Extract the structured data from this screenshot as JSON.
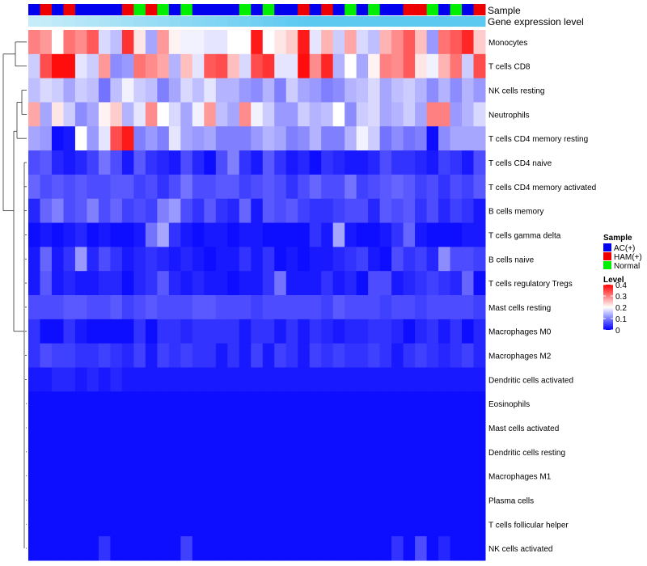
{
  "chart_data": {
    "type": "heatmap",
    "title": "",
    "annotation_tracks": [
      "Sample",
      "Gene expression level"
    ],
    "rows": [
      "Monocytes",
      "T cells CD8",
      "NK cells resting",
      "Neutrophils",
      "T cells CD4 memory resting",
      "T cells CD4 naive",
      "T cells CD4 memory activated",
      "B cells memory",
      "T cells gamma delta",
      "B cells naive",
      "T cells regulatory  Tregs",
      "Mast cells resting",
      "Macrophages M0",
      "Macrophages M2",
      "Dendritic cells activated",
      "Eosinophils",
      "Mast cells activated",
      "Dendritic cells resting",
      "Macrophages M1",
      "Plasma cells",
      "T cells follicular helper",
      "NK cells activated"
    ],
    "sample_groups": [
      "AC(+)",
      "HAM(+)",
      "AC(+)",
      "HAM(+)",
      "AC(+)",
      "AC(+)",
      "AC(+)",
      "AC(+)",
      "HAM(+)",
      "Normal",
      "HAM(+)",
      "Normal",
      "AC(+)",
      "Normal",
      "AC(+)",
      "AC(+)",
      "AC(+)",
      "AC(+)",
      "Normal",
      "AC(+)",
      "Normal",
      "AC(+)",
      "AC(+)",
      "HAM(+)",
      "AC(+)",
      "HAM(+)",
      "AC(+)",
      "Normal",
      "AC(+)",
      "Normal",
      "AC(+)",
      "AC(+)",
      "HAM(+)",
      "HAM(+)",
      "Normal",
      "AC(+)",
      "Normal",
      "AC(+)",
      "HAM(+)"
    ],
    "gene_expression_level": [
      0.05,
      0.09,
      0.13,
      0.17,
      0.21,
      0.25,
      0.29,
      0.33,
      0.37,
      0.41,
      0.45,
      0.49,
      0.53,
      0.57,
      0.61,
      0.65,
      0.69,
      0.73,
      0.77,
      0.81,
      0.85,
      0.89,
      0.93,
      0.97,
      0.98,
      0.98,
      0.98,
      0.98,
      0.98,
      0.98,
      0.98,
      0.98,
      0.98,
      0.98,
      0.98,
      0.98,
      0.98,
      0.98,
      0.98
    ],
    "values": [
      [
        0.3,
        0.28,
        0.2,
        0.31,
        0.29,
        0.33,
        0.17,
        0.15,
        0.36,
        0.22,
        0.13,
        0.28,
        0.21,
        0.19,
        0.19,
        0.18,
        0.18,
        0.2,
        0.2,
        0.38,
        0.2,
        0.22,
        0.24,
        0.38,
        0.18,
        0.26,
        0.16,
        0.27,
        0.17,
        0.15,
        0.26,
        0.29,
        0.33,
        0.25,
        0.12,
        0.31,
        0.33,
        0.37,
        0.24
      ],
      [
        0.16,
        0.34,
        0.39,
        0.39,
        0.18,
        0.16,
        0.28,
        0.11,
        0.12,
        0.31,
        0.29,
        0.27,
        0.14,
        0.25,
        0.18,
        0.33,
        0.34,
        0.25,
        0.17,
        0.34,
        0.36,
        0.18,
        0.18,
        0.39,
        0.29,
        0.37,
        0.14,
        0.2,
        0.13,
        0.21,
        0.3,
        0.29,
        0.33,
        0.22,
        0.19,
        0.26,
        0.31,
        0.16,
        0.34
      ],
      [
        0.15,
        0.17,
        0.16,
        0.13,
        0.16,
        0.15,
        0.09,
        0.15,
        0.19,
        0.16,
        0.15,
        0.1,
        0.13,
        0.17,
        0.15,
        0.18,
        0.14,
        0.14,
        0.12,
        0.11,
        0.14,
        0.1,
        0.16,
        0.13,
        0.12,
        0.1,
        0.11,
        0.14,
        0.15,
        0.17,
        0.13,
        0.15,
        0.16,
        0.14,
        0.11,
        0.14,
        0.11,
        0.14,
        0.12
      ],
      [
        0.27,
        0.13,
        0.22,
        0.16,
        0.11,
        0.13,
        0.21,
        0.24,
        0.14,
        0.18,
        0.29,
        0.2,
        0.17,
        0.13,
        0.19,
        0.28,
        0.15,
        0.13,
        0.29,
        0.19,
        0.16,
        0.12,
        0.12,
        0.16,
        0.14,
        0.15,
        0.2,
        0.11,
        0.16,
        0.17,
        0.13,
        0.14,
        0.16,
        0.13,
        0.3,
        0.3,
        0.12,
        0.14,
        0.17
      ],
      [
        0.13,
        0.12,
        0.01,
        0.02,
        0.2,
        0.12,
        0.18,
        0.34,
        0.38,
        0.1,
        0.12,
        0.1,
        0.18,
        0.13,
        0.12,
        0.13,
        0.1,
        0.1,
        0.1,
        0.12,
        0.14,
        0.13,
        0.1,
        0.11,
        0.14,
        0.1,
        0.1,
        0.14,
        0.19,
        0.16,
        0.09,
        0.11,
        0.09,
        0.1,
        0.01,
        0.11,
        0.13,
        0.13,
        0.13
      ],
      [
        0.06,
        0.07,
        0.03,
        0.02,
        0.03,
        0.05,
        0.09,
        0.06,
        0.02,
        0.07,
        0.04,
        0.03,
        0.02,
        0.06,
        0.03,
        0.01,
        0.06,
        0.1,
        0.04,
        0.02,
        0.07,
        0.04,
        0.02,
        0.03,
        0.01,
        0.04,
        0.03,
        0.02,
        0.02,
        0.03,
        0.06,
        0.04,
        0.04,
        0.03,
        0.02,
        0.05,
        0.04,
        0.02,
        0.06
      ],
      [
        0.08,
        0.06,
        0.07,
        0.06,
        0.07,
        0.06,
        0.06,
        0.07,
        0.07,
        0.05,
        0.06,
        0.04,
        0.06,
        0.09,
        0.06,
        0.06,
        0.07,
        0.07,
        0.05,
        0.06,
        0.07,
        0.06,
        0.04,
        0.06,
        0.08,
        0.06,
        0.06,
        0.09,
        0.05,
        0.06,
        0.07,
        0.08,
        0.07,
        0.05,
        0.06,
        0.04,
        0.06,
        0.05,
        0.07
      ],
      [
        0.03,
        0.08,
        0.1,
        0.06,
        0.07,
        0.1,
        0.06,
        0.08,
        0.05,
        0.06,
        0.05,
        0.1,
        0.12,
        0.06,
        0.04,
        0.07,
        0.04,
        0.03,
        0.08,
        0.02,
        0.07,
        0.06,
        0.07,
        0.05,
        0.04,
        0.04,
        0.05,
        0.06,
        0.06,
        0.03,
        0.07,
        0.06,
        0.07,
        0.04,
        0.06,
        0.03,
        0.05,
        0.04,
        0.02
      ],
      [
        0.01,
        0.02,
        0.01,
        0.02,
        0.03,
        0.01,
        0.02,
        0.01,
        0.01,
        0.02,
        0.09,
        0.13,
        0.04,
        0.02,
        0.01,
        0.02,
        0.02,
        0.01,
        0.02,
        0.02,
        0.01,
        0.01,
        0.01,
        0.01,
        0.04,
        0.02,
        0.13,
        0.02,
        0.01,
        0.01,
        0.02,
        0.04,
        0.08,
        0.02,
        0.01,
        0.01,
        0.01,
        0.02,
        0.02
      ],
      [
        0.02,
        0.08,
        0.02,
        0.04,
        0.12,
        0.03,
        0.06,
        0.04,
        0.02,
        0.03,
        0.04,
        0.03,
        0.02,
        0.03,
        0.02,
        0.01,
        0.02,
        0.02,
        0.04,
        0.02,
        0.04,
        0.01,
        0.02,
        0.01,
        0.02,
        0.02,
        0.03,
        0.04,
        0.05,
        0.02,
        0.01,
        0.06,
        0.04,
        0.05,
        0.03,
        0.11,
        0.06,
        0.06,
        0.05
      ],
      [
        0.02,
        0.07,
        0.02,
        0.03,
        0.02,
        0.02,
        0.03,
        0.03,
        0.01,
        0.03,
        0.04,
        0.07,
        0.03,
        0.02,
        0.03,
        0.02,
        0.02,
        0.01,
        0.02,
        0.02,
        0.04,
        0.09,
        0.02,
        0.02,
        0.02,
        0.04,
        0.02,
        0.03,
        0.01,
        0.06,
        0.06,
        0.02,
        0.03,
        0.04,
        0.05,
        0.04,
        0.03,
        0.08,
        0.01
      ],
      [
        0.06,
        0.06,
        0.06,
        0.07,
        0.07,
        0.06,
        0.06,
        0.07,
        0.05,
        0.06,
        0.07,
        0.06,
        0.06,
        0.06,
        0.07,
        0.07,
        0.06,
        0.06,
        0.06,
        0.05,
        0.06,
        0.06,
        0.06,
        0.06,
        0.06,
        0.05,
        0.07,
        0.06,
        0.06,
        0.06,
        0.05,
        0.06,
        0.06,
        0.05,
        0.06,
        0.06,
        0.06,
        0.06,
        0.05
      ],
      [
        0.04,
        0.01,
        0.01,
        0.04,
        0.02,
        0.01,
        0.01,
        0.01,
        0.01,
        0.04,
        0.01,
        0.04,
        0.04,
        0.03,
        0.04,
        0.04,
        0.04,
        0.04,
        0.02,
        0.04,
        0.04,
        0.02,
        0.04,
        0.02,
        0.04,
        0.03,
        0.02,
        0.03,
        0.03,
        0.04,
        0.04,
        0.03,
        0.01,
        0.03,
        0.04,
        0.02,
        0.04,
        0.01,
        0.03
      ],
      [
        0.04,
        0.06,
        0.05,
        0.05,
        0.04,
        0.04,
        0.05,
        0.04,
        0.03,
        0.05,
        0.02,
        0.05,
        0.04,
        0.05,
        0.04,
        0.04,
        0.02,
        0.04,
        0.02,
        0.05,
        0.02,
        0.05,
        0.04,
        0.02,
        0.05,
        0.04,
        0.05,
        0.04,
        0.04,
        0.05,
        0.04,
        0.02,
        0.04,
        0.05,
        0.04,
        0.03,
        0.04,
        0.05,
        0.03
      ],
      [
        0.02,
        0.02,
        0.03,
        0.03,
        0.02,
        0.03,
        0.02,
        0.03,
        0.02,
        0.02,
        0.02,
        0.02,
        0.02,
        0.02,
        0.02,
        0.02,
        0.02,
        0.02,
        0.02,
        0.02,
        0.02,
        0.02,
        0.02,
        0.02,
        0.02,
        0.02,
        0.02,
        0.02,
        0.02,
        0.02,
        0.02,
        0.02,
        0.02,
        0.02,
        0.02,
        0.02,
        0.02,
        0.02,
        0.02
      ],
      [
        0.01,
        0.01,
        0.01,
        0.01,
        0.01,
        0.01,
        0.01,
        0.01,
        0.01,
        0.01,
        0.01,
        0.01,
        0.01,
        0.01,
        0.01,
        0.01,
        0.01,
        0.01,
        0.01,
        0.01,
        0.01,
        0.01,
        0.01,
        0.01,
        0.01,
        0.01,
        0.01,
        0.01,
        0.01,
        0.01,
        0.01,
        0.01,
        0.01,
        0.01,
        0.01,
        0.01,
        0.01,
        0.01,
        0.01
      ],
      [
        0.01,
        0.01,
        0.01,
        0.01,
        0.01,
        0.01,
        0.01,
        0.01,
        0.01,
        0.01,
        0.01,
        0.01,
        0.01,
        0.01,
        0.01,
        0.01,
        0.01,
        0.01,
        0.01,
        0.01,
        0.01,
        0.01,
        0.01,
        0.01,
        0.01,
        0.01,
        0.01,
        0.01,
        0.01,
        0.01,
        0.01,
        0.01,
        0.01,
        0.01,
        0.01,
        0.01,
        0.01,
        0.01,
        0.01
      ],
      [
        0.01,
        0.01,
        0.01,
        0.01,
        0.01,
        0.01,
        0.01,
        0.01,
        0.01,
        0.01,
        0.01,
        0.01,
        0.01,
        0.01,
        0.01,
        0.01,
        0.01,
        0.01,
        0.01,
        0.01,
        0.01,
        0.01,
        0.01,
        0.01,
        0.01,
        0.01,
        0.01,
        0.01,
        0.01,
        0.01,
        0.01,
        0.01,
        0.01,
        0.01,
        0.01,
        0.01,
        0.01,
        0.01,
        0.01
      ],
      [
        0.01,
        0.01,
        0.01,
        0.01,
        0.01,
        0.01,
        0.01,
        0.01,
        0.01,
        0.01,
        0.01,
        0.01,
        0.01,
        0.01,
        0.01,
        0.01,
        0.01,
        0.01,
        0.01,
        0.01,
        0.01,
        0.01,
        0.01,
        0.01,
        0.01,
        0.01,
        0.01,
        0.01,
        0.01,
        0.01,
        0.01,
        0.01,
        0.01,
        0.01,
        0.01,
        0.01,
        0.01,
        0.01,
        0.01
      ],
      [
        0.01,
        0.01,
        0.01,
        0.01,
        0.01,
        0.01,
        0.01,
        0.01,
        0.01,
        0.01,
        0.01,
        0.01,
        0.01,
        0.01,
        0.01,
        0.01,
        0.01,
        0.01,
        0.01,
        0.01,
        0.01,
        0.01,
        0.01,
        0.01,
        0.01,
        0.01,
        0.01,
        0.01,
        0.01,
        0.01,
        0.01,
        0.01,
        0.01,
        0.01,
        0.01,
        0.01,
        0.01,
        0.01,
        0.01
      ],
      [
        0.01,
        0.01,
        0.01,
        0.01,
        0.01,
        0.01,
        0.01,
        0.01,
        0.01,
        0.01,
        0.01,
        0.01,
        0.01,
        0.01,
        0.01,
        0.01,
        0.01,
        0.01,
        0.01,
        0.01,
        0.01,
        0.01,
        0.01,
        0.01,
        0.01,
        0.01,
        0.01,
        0.01,
        0.01,
        0.01,
        0.01,
        0.01,
        0.01,
        0.01,
        0.01,
        0.01,
        0.01,
        0.01,
        0.01
      ],
      [
        0.01,
        0.01,
        0.01,
        0.01,
        0.01,
        0.01,
        0.01,
        0.01,
        0.01,
        0.01,
        0.01,
        0.01,
        0.01,
        0.01,
        0.01,
        0.01,
        0.01,
        0.01,
        0.01,
        0.01,
        0.01,
        0.01,
        0.01,
        0.01,
        0.01,
        0.01,
        0.01,
        0.01,
        0.01,
        0.01,
        0.01,
        0.01,
        0.01,
        0.01,
        0.01,
        0.01,
        0.01,
        0.01,
        0.01
      ]
    ],
    "value_overrides": {
      "21": {
        "6": 0.04,
        "13": 0.05,
        "31": 0.04,
        "33": 0.06,
        "35": 0.03
      }
    },
    "legend_sample": {
      "title": "Sample",
      "entries": [
        {
          "label": "AC(+)",
          "color": "#0000ee"
        },
        {
          "label": "HAM(+)",
          "color": "#ee0000"
        },
        {
          "label": "Normal",
          "color": "#00ee00"
        }
      ]
    },
    "legend_level": {
      "title": "Level",
      "ticks": [
        0,
        0.1,
        0.2,
        0.3,
        0.4
      ],
      "tick_labels": [
        "0",
        "0.1",
        "0.2",
        "0.3",
        "0.4"
      ]
    },
    "colors": {
      "low": "#0000ff",
      "mid": "#ffffff",
      "high": "#ff0000",
      "track_light": "#cdeef9",
      "track_dark": "#5ac8f0"
    },
    "ylim": [
      0,
      0.4
    ],
    "dendrogram": "rows clustered (hierarchical)"
  }
}
